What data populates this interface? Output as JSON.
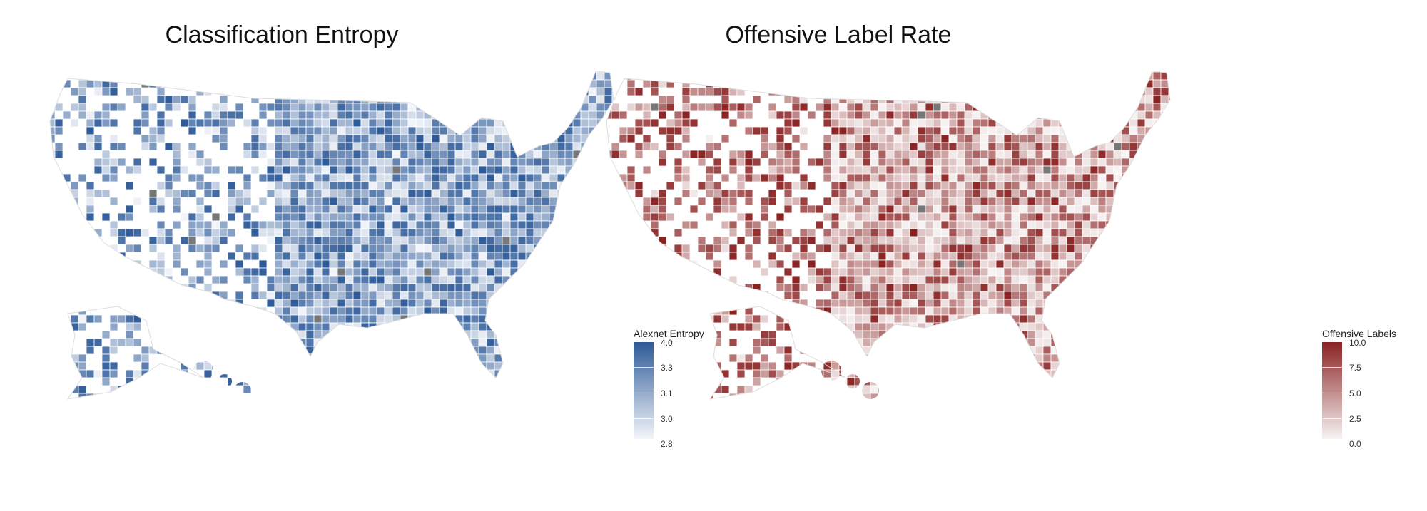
{
  "panels": [
    {
      "title": "Classification Entropy",
      "legend_title": "Alexnet Entropy",
      "ticks": [
        "4.0",
        "3.3",
        "3.1",
        "3.0",
        "2.8"
      ],
      "color_high": "#2d5a98",
      "color_low": "#f4f6fa",
      "missing": "#777777"
    },
    {
      "title": "Offensive Label Rate",
      "legend_title": "Offensive Labels",
      "ticks": [
        "10.0",
        "7.5",
        "5.0",
        "2.5",
        "0.0"
      ],
      "color_high": "#8a2222",
      "color_low": "#f7f3f3",
      "missing": "#777777"
    }
  ]
}
